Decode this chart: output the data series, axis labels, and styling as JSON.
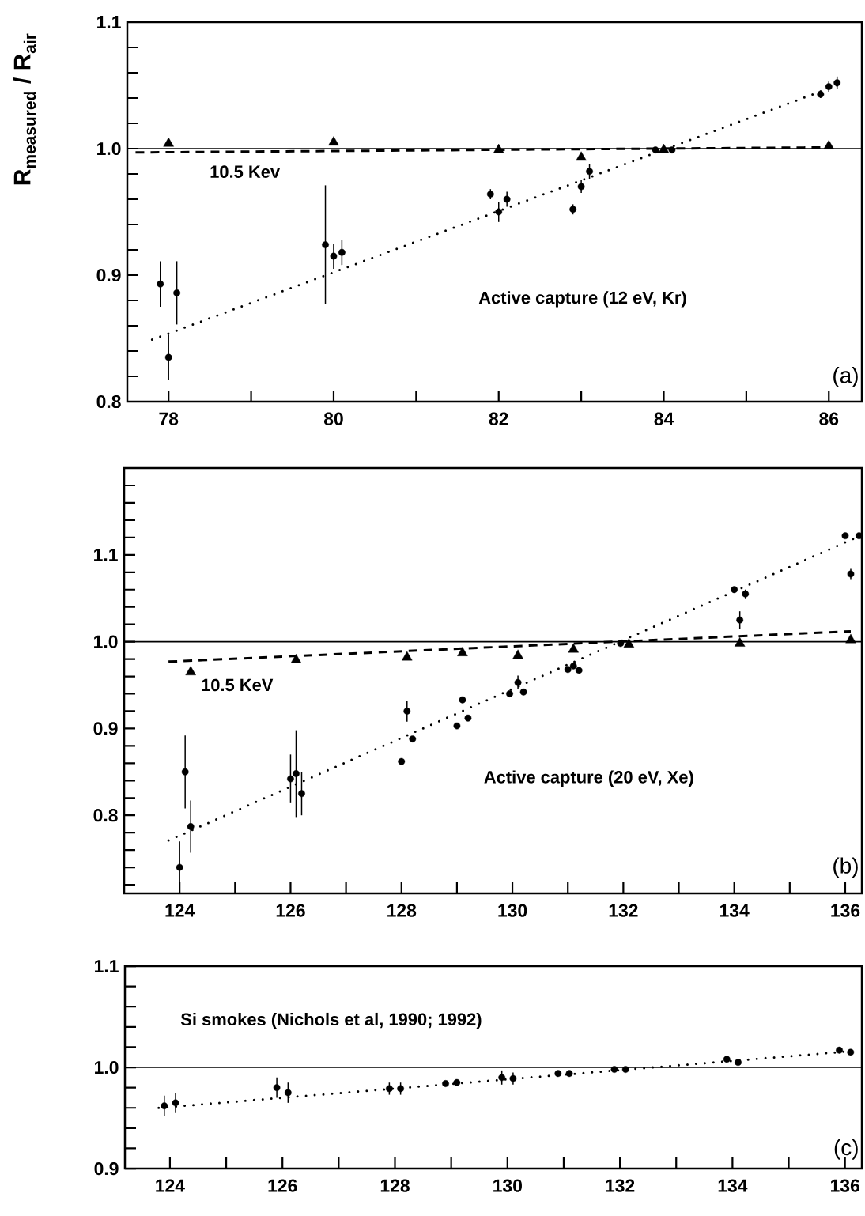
{
  "chart_data": [
    {
      "type": "scatter",
      "ylabel": "R$_{measured}$ / R$_{air}$",
      "xlim": [
        77.5,
        86.4
      ],
      "ylim": [
        0.8,
        1.1
      ],
      "xticks": [
        78,
        {
          "value": 79,
          "label": null
        },
        80,
        {
          "value": 81,
          "label": null
        },
        82,
        {
          "value": 83,
          "label": null
        },
        84,
        {
          "value": 85,
          "label": null
        },
        86
      ],
      "yticks": [
        0.8,
        {
          "value": 0.82,
          "label": null
        },
        {
          "value": 0.84,
          "label": null
        },
        {
          "value": 0.86,
          "label": null
        },
        {
          "value": 0.88,
          "label": null
        },
        0.9,
        {
          "value": 0.92,
          "label": null
        },
        {
          "value": 0.94,
          "label": null
        },
        {
          "value": 0.96,
          "label": null
        },
        {
          "value": 0.98,
          "label": null
        },
        {
          "value": 1,
          "label": "1.0"
        },
        {
          "value": 1.02,
          "label": null
        },
        {
          "value": 1.04,
          "label": null
        },
        {
          "value": 1.06,
          "label": null
        },
        {
          "value": 1.08,
          "label": null
        },
        1.1
      ],
      "ref_lines": [
        {
          "axis": "y",
          "value": 1,
          "color": "#000000"
        }
      ],
      "series": [
        {
          "marker": "circle",
          "color": "#000000",
          "x": [
            77.9,
            78.0,
            78.1,
            79.9,
            80.0,
            80.1,
            81.9,
            82.0,
            82.1,
            82.9,
            83.0,
            83.1,
            83.9,
            84.0,
            84.1,
            85.9,
            86.0,
            86.1
          ],
          "values": [
            0.893,
            0.835,
            0.886,
            0.924,
            0.915,
            0.918,
            0.964,
            0.95,
            0.96,
            0.952,
            0.97,
            0.982,
            0.999,
            null,
            0.999,
            1.043,
            1.049,
            1.052
          ],
          "errors": [
            0.018,
            0.018,
            0.025,
            0.047,
            0.01,
            0.01,
            0.004,
            0.008,
            0.006,
            0.004,
            0.005,
            0.006,
            null,
            null,
            null,
            0.003,
            0.004,
            0.005
          ]
        },
        {
          "marker": "triangle",
          "color": "#000000",
          "x": [
            78,
            80,
            82,
            83,
            84,
            86
          ],
          "values": [
            1.004,
            1.005,
            0.999,
            0.993,
            0.999,
            1.002
          ]
        },
        {
          "type": "line",
          "line_style": "dashed",
          "color": "#000000",
          "x": [
            77.6,
            86.0
          ],
          "values": [
            0.997,
            1.001
          ]
        },
        {
          "type": "line",
          "line_style": "dotted",
          "color": "#000000",
          "x": [
            77.8,
            86.1
          ],
          "values": [
            0.849,
            1.05
          ]
        }
      ],
      "annotations": [
        "10.5 Kev",
        "Active capture (12 eV, Kr)",
        "(a)"
      ]
    },
    {
      "type": "scatter",
      "xlim": [
        123.0,
        136.3
      ],
      "ylim": [
        0.71,
        1.2
      ],
      "xticks": [
        124,
        {
          "value": 125,
          "label": null
        },
        126,
        {
          "value": 127,
          "label": null
        },
        128,
        {
          "value": 129,
          "label": null
        },
        130,
        {
          "value": 131,
          "label": null
        },
        132,
        {
          "value": 133,
          "label": null
        },
        134,
        {
          "value": 135,
          "label": null
        },
        136
      ],
      "yticks": [
        {
          "value": 0.72,
          "label": null
        },
        {
          "value": 0.74,
          "label": null
        },
        {
          "value": 0.76,
          "label": null
        },
        {
          "value": 0.78,
          "label": null
        },
        0.8,
        {
          "value": 0.82,
          "label": null
        },
        {
          "value": 0.84,
          "label": null
        },
        {
          "value": 0.86,
          "label": null
        },
        {
          "value": 0.88,
          "label": null
        },
        0.9,
        {
          "value": 0.92,
          "label": null
        },
        {
          "value": 0.94,
          "label": null
        },
        {
          "value": 0.96,
          "label": null
        },
        {
          "value": 0.98,
          "label": null
        },
        {
          "value": 1,
          "label": "1.0"
        },
        {
          "value": 1.02,
          "label": null
        },
        {
          "value": 1.04,
          "label": null
        },
        {
          "value": 1.06,
          "label": null
        },
        {
          "value": 1.08,
          "label": null
        },
        1.1,
        {
          "value": 1.12,
          "label": null
        },
        {
          "value": 1.14,
          "label": null
        },
        {
          "value": 1.16,
          "label": null
        },
        {
          "value": 1.18,
          "label": null
        }
      ],
      "ref_lines": [
        {
          "axis": "y",
          "value": 1,
          "color": "#000000"
        }
      ],
      "series": [
        {
          "marker": "circle",
          "color": "#000000",
          "x": [
            124.0,
            124.1,
            124.2,
            126.0,
            126.1,
            126.2,
            128.0,
            128.1,
            128.2,
            129.0,
            129.1,
            129.2,
            129.95,
            130.1,
            130.2,
            131.0,
            131.1,
            131.2,
            131.95,
            132.1,
            134.0,
            134.1,
            134.2,
            136.0,
            136.1,
            136.25
          ],
          "values": [
            0.74,
            0.85,
            0.787,
            0.842,
            0.848,
            0.825,
            0.862,
            0.92,
            0.888,
            0.903,
            0.933,
            0.912,
            0.94,
            0.953,
            0.942,
            0.968,
            0.972,
            0.967,
            0.998,
            null,
            1.06,
            1.025,
            1.055,
            1.122,
            1.078,
            1.122
          ],
          "errors": [
            0.03,
            0.042,
            0.03,
            0.028,
            0.05,
            0.025,
            null,
            0.012,
            null,
            null,
            null,
            null,
            null,
            0.008,
            null,
            null,
            null,
            null,
            null,
            null,
            null,
            0.01,
            0.005,
            null,
            0.006,
            null
          ]
        },
        {
          "marker": "triangle",
          "color": "#000000",
          "x": [
            124.2,
            126.1,
            128.1,
            129.1,
            130.1,
            131.1,
            132.1,
            134.1,
            136.1
          ],
          "values": [
            0.965,
            0.979,
            0.982,
            0.987,
            0.984,
            0.991,
            0.997,
            0.998,
            1.002
          ]
        },
        {
          "type": "line",
          "line_style": "dashed",
          "color": "#000000",
          "x": [
            123.8,
            136.1
          ],
          "values": [
            0.977,
            1.012
          ]
        },
        {
          "type": "line",
          "line_style": "dotted",
          "color": "#000000",
          "x": [
            123.8,
            136.2
          ],
          "values": [
            0.771,
            1.12
          ]
        }
      ],
      "annotations": [
        "10.5 KeV",
        "Active capture (20 eV, Xe)",
        "(b)"
      ]
    },
    {
      "type": "scatter",
      "xlim": [
        123.2,
        136.3
      ],
      "ylim": [
        0.9,
        1.1
      ],
      "xticks": [
        124,
        {
          "value": 125,
          "label": null
        },
        126,
        {
          "value": 127,
          "label": null
        },
        128,
        {
          "value": 129,
          "label": null
        },
        130,
        {
          "value": 131,
          "label": null
        },
        132,
        {
          "value": 133,
          "label": null
        },
        134,
        {
          "value": 135,
          "label": null
        },
        136
      ],
      "yticks": [
        0.9,
        {
          "value": 0.92,
          "label": null
        },
        {
          "value": 0.94,
          "label": null
        },
        {
          "value": 0.96,
          "label": null
        },
        {
          "value": 0.98,
          "label": null
        },
        {
          "value": 1,
          "label": "1.0"
        },
        {
          "value": 1.02,
          "label": null
        },
        {
          "value": 1.04,
          "label": null
        },
        {
          "value": 1.06,
          "label": null
        },
        {
          "value": 1.08,
          "label": null
        },
        1.1
      ],
      "ref_lines": [
        {
          "axis": "y",
          "value": 1,
          "color": "#000000"
        }
      ],
      "series": [
        {
          "marker": "circle",
          "color": "#000000",
          "x": [
            123.9,
            124.1,
            125.9,
            126.1,
            127.9,
            128.1,
            128.9,
            129.1,
            129.9,
            130.1,
            130.9,
            131.1,
            131.9,
            132.1,
            133.9,
            134.1,
            135.9,
            136.1
          ],
          "values": [
            0.962,
            0.965,
            0.98,
            0.975,
            0.979,
            0.979,
            0.984,
            0.985,
            0.99,
            0.989,
            0.994,
            0.994,
            0.998,
            0.998,
            1.008,
            1.005,
            1.017,
            1.015
          ],
          "errors": [
            0.01,
            0.01,
            0.01,
            0.01,
            0.006,
            0.006,
            null,
            null,
            0.007,
            0.006,
            null,
            null,
            null,
            null,
            0.003,
            null,
            0.003,
            null
          ]
        },
        {
          "type": "line",
          "line_style": "dotted",
          "color": "#000000",
          "x": [
            123.8,
            136.1
          ],
          "values": [
            0.96,
            1.016
          ]
        }
      ],
      "annotations": [
        "Si smokes (Nichols et al, 1990; 1992)",
        "(c)"
      ]
    }
  ]
}
